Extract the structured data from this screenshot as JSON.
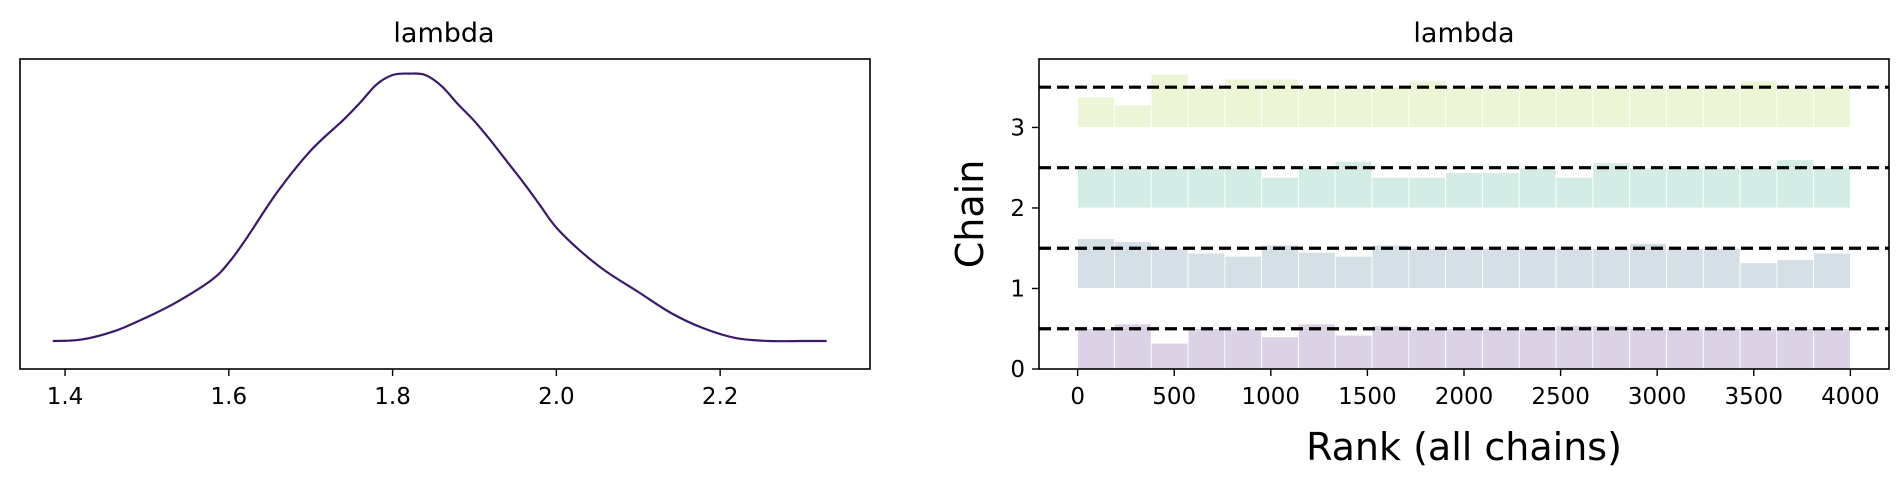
{
  "chart_data": [
    {
      "type": "line",
      "title": "lambda",
      "xlabel": "",
      "ylabel": "",
      "xlim": [
        1.345,
        2.383
      ],
      "ylim": [
        0,
        1
      ],
      "xticks": [
        "1.4",
        "1.6",
        "1.8",
        "2.0",
        "2.2"
      ],
      "yticks": [],
      "grid": false,
      "color": "#3b1a6e",
      "x": [
        1.385,
        1.42,
        1.46,
        1.5,
        1.54,
        1.58,
        1.6,
        1.62,
        1.66,
        1.7,
        1.74,
        1.76,
        1.78,
        1.8,
        1.82,
        1.84,
        1.86,
        1.88,
        1.9,
        1.92,
        1.94,
        1.96,
        1.98,
        2.0,
        2.03,
        2.06,
        2.1,
        2.14,
        2.18,
        2.22,
        2.26,
        2.3,
        2.33
      ],
      "y": [
        0.05,
        0.055,
        0.085,
        0.135,
        0.195,
        0.27,
        0.33,
        0.41,
        0.585,
        0.73,
        0.84,
        0.9,
        0.965,
        1.0,
        1.005,
        1.0,
        0.96,
        0.895,
        0.835,
        0.765,
        0.69,
        0.615,
        0.535,
        0.455,
        0.37,
        0.3,
        0.225,
        0.15,
        0.095,
        0.06,
        0.05,
        0.05,
        0.05
      ]
    },
    {
      "type": "bar",
      "title": "lambda",
      "xlabel": "Rank (all chains)",
      "ylabel": "Chain",
      "xlim": [
        -200,
        4200
      ],
      "ylim": [
        0,
        3.85
      ],
      "xticks": [
        "0",
        "500",
        "1000",
        "1500",
        "2000",
        "2500",
        "3000",
        "3500",
        "4000"
      ],
      "yticks": [
        "0",
        "1",
        "2",
        "3"
      ],
      "grid": false,
      "reference_lines": [
        0.5,
        1.5,
        2.5,
        3.5
      ],
      "bin_edges": [
        0,
        190.5,
        381,
        571.5,
        762,
        952.5,
        1143,
        1333.5,
        1524,
        1714.5,
        1905,
        2095.5,
        2286,
        2476.5,
        2667,
        2857.5,
        3048,
        3238.5,
        3429,
        3619.5,
        3810,
        4000
      ],
      "series": [
        {
          "chain": 0,
          "color": "#dcd2e6",
          "values": [
            0.5,
            0.56,
            0.32,
            0.5,
            0.5,
            0.4,
            0.56,
            0.42,
            0.54,
            0.5,
            0.5,
            0.5,
            0.5,
            0.54,
            0.54,
            0.5,
            0.5,
            0.5,
            0.5,
            0.5,
            0.5
          ]
        },
        {
          "chain": 1,
          "color": "#d4dfe6",
          "values": [
            0.62,
            0.58,
            0.5,
            0.44,
            0.4,
            0.54,
            0.45,
            0.4,
            0.54,
            0.5,
            0.5,
            0.5,
            0.5,
            0.5,
            0.5,
            0.56,
            0.5,
            0.5,
            0.32,
            0.36,
            0.44
          ]
        },
        {
          "chain": 2,
          "color": "#d3ede6",
          "values": [
            0.5,
            0.5,
            0.5,
            0.5,
            0.5,
            0.38,
            0.5,
            0.58,
            0.38,
            0.38,
            0.44,
            0.44,
            0.5,
            0.38,
            0.56,
            0.5,
            0.5,
            0.5,
            0.5,
            0.6,
            0.5
          ]
        },
        {
          "chain": 3,
          "color": "#ecf5d6",
          "values": [
            0.38,
            0.28,
            0.66,
            0.5,
            0.6,
            0.6,
            0.5,
            0.5,
            0.5,
            0.58,
            0.5,
            0.5,
            0.5,
            0.5,
            0.5,
            0.5,
            0.5,
            0.5,
            0.58,
            0.5,
            0.5
          ]
        }
      ]
    }
  ]
}
